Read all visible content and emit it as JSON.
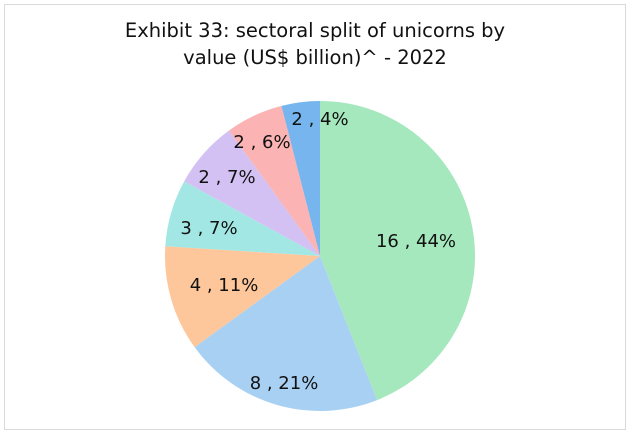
{
  "chart_data": {
    "type": "pie",
    "title_lines": [
      "Exhibit 33: sectoral split of unicorns by",
      "value (US$ billion)^ - 2022"
    ],
    "slices": [
      {
        "value": 16,
        "percent": 44,
        "label": "16 , 44%",
        "color": "#a5e8bd"
      },
      {
        "value": 8,
        "percent": 21,
        "label": "8 , 21%",
        "color": "#a8d0f3"
      },
      {
        "value": 4,
        "percent": 11,
        "label": "4 , 11%",
        "color": "#fdc79b"
      },
      {
        "value": 3,
        "percent": 7,
        "label": "3 , 7%",
        "color": "#a3e7e4"
      },
      {
        "value": 2,
        "percent": 7,
        "label": "2 , 7%",
        "color": "#d3c1f4"
      },
      {
        "value": 2,
        "percent": 6,
        "label": "2 , 6%",
        "color": "#fbb3b3"
      },
      {
        "value": 2,
        "percent": 4,
        "label": "2 , 4%",
        "color": "#76b5ee"
      }
    ]
  }
}
